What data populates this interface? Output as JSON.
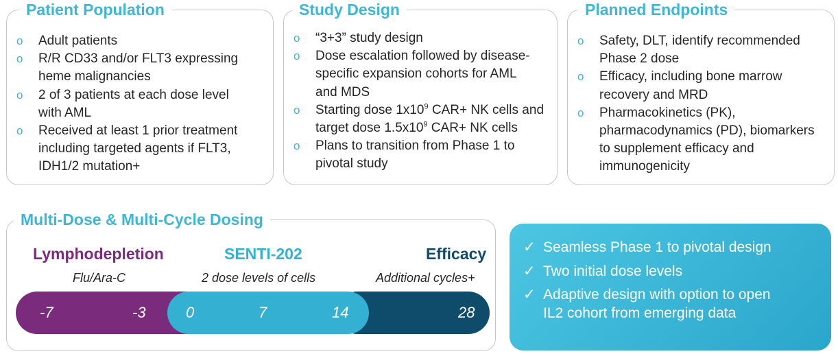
{
  "patient_population": {
    "title": "Patient Population",
    "items": [
      [
        "Adult patients"
      ],
      [
        "R/R CD33 and/or FLT3 expressing",
        "heme malignancies"
      ],
      [
        "2 of 3 patients at each dose level",
        "with AML"
      ],
      [
        "Received at least 1 prior treatment",
        "including targeted agents if FLT3,",
        "IDH1/2 mutation+"
      ]
    ]
  },
  "study_design": {
    "title": "Study Design",
    "items": {
      "i0": [
        "“3+3” study design"
      ],
      "i1": [
        "Dose escalation followed by disease-",
        "specific expansion cohorts for AML",
        "and MDS"
      ],
      "i2": {
        "l1_pre": "Starting dose 1x10",
        "l1_sup": "9",
        "l1_post": " CAR+ NK cells and",
        "l2_pre": "target dose 1.5x10",
        "l2_sup": "9",
        "l2_post": " CAR+ NK cells"
      },
      "i3": [
        "Plans to transition from Phase 1 to",
        "pivotal study"
      ]
    }
  },
  "planned_endpoints": {
    "title": "Planned Endpoints",
    "items": [
      [
        "Safety, DLT, identify recommended",
        "Phase 2 dose"
      ],
      [
        "Efficacy, including bone marrow",
        "recovery and MRD"
      ],
      [
        "Pharmacokinetics (PK),",
        "pharmacodynamics (PD), biomarkers",
        "to supplement efficacy and",
        "immunogenicity"
      ]
    ]
  },
  "dosing": {
    "title": "Multi-Dose & Multi-Cycle Dosing",
    "phases": {
      "lymphodepletion": {
        "label": "Lymphodepletion",
        "sub": "Flu/Ara-C",
        "color": "#7b2b7c"
      },
      "senti": {
        "label": "SENTI-202",
        "sub": "2 dose levels of cells",
        "color": "#34b0d2"
      },
      "efficacy": {
        "label": "Efficacy",
        "sub": "Additional cycles+",
        "color": "#0f4b6b"
      }
    },
    "days": {
      "d_minus7": "-7",
      "d_minus3": "-3",
      "d0": "0",
      "d7": "7",
      "d14": "14",
      "d28": "28"
    }
  },
  "callout": {
    "items": [
      [
        "Seamless Phase 1 to pivotal design"
      ],
      [
        "Two initial dose levels"
      ],
      [
        "Adaptive design with option to open",
        "IL2 cohort from emerging data"
      ]
    ]
  },
  "icons": {
    "bullet": "circle-bullet-icon",
    "check": "check-icon"
  },
  "colors": {
    "accent": "#3eb6d6",
    "purple": "#7b2b7c",
    "teal": "#34b0d2",
    "navy": "#0f4b6b"
  }
}
